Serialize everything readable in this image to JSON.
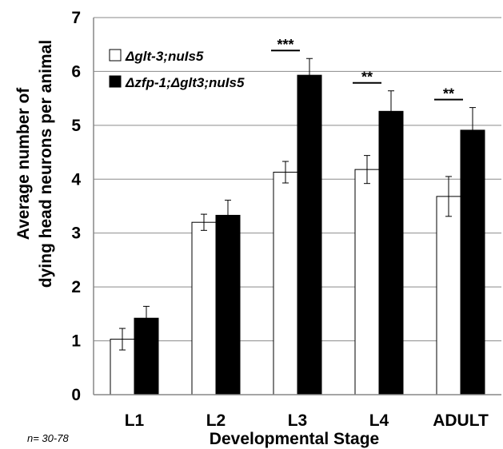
{
  "chart_data": {
    "type": "bar",
    "categories": [
      "L1",
      "L2",
      "L3",
      "L4",
      "ADULT"
    ],
    "series": [
      {
        "name": "Δglt-3;nuIs5",
        "values": [
          1.03,
          3.2,
          4.13,
          4.18,
          3.68
        ],
        "errors": [
          0.2,
          0.15,
          0.2,
          0.26,
          0.37
        ],
        "color": "#ffffff"
      },
      {
        "name": "Δzfp-1;Δglt3;nuIs5",
        "values": [
          1.42,
          3.33,
          5.93,
          5.26,
          4.91
        ],
        "errors": [
          0.22,
          0.28,
          0.31,
          0.38,
          0.42
        ],
        "color": "#000000"
      }
    ],
    "significance": [
      "",
      "",
      "***",
      "**",
      "**"
    ],
    "xlabel": "Developmental Stage",
    "ylabel": [
      "Average number of",
      "dying head neurons  per animal"
    ],
    "ylim": [
      0,
      7
    ],
    "yticks": [
      "0",
      "1",
      "2",
      "3",
      "4",
      "5",
      "6",
      "7"
    ],
    "grid": true,
    "legend_position": "top-left",
    "note": "n= 30-78"
  }
}
